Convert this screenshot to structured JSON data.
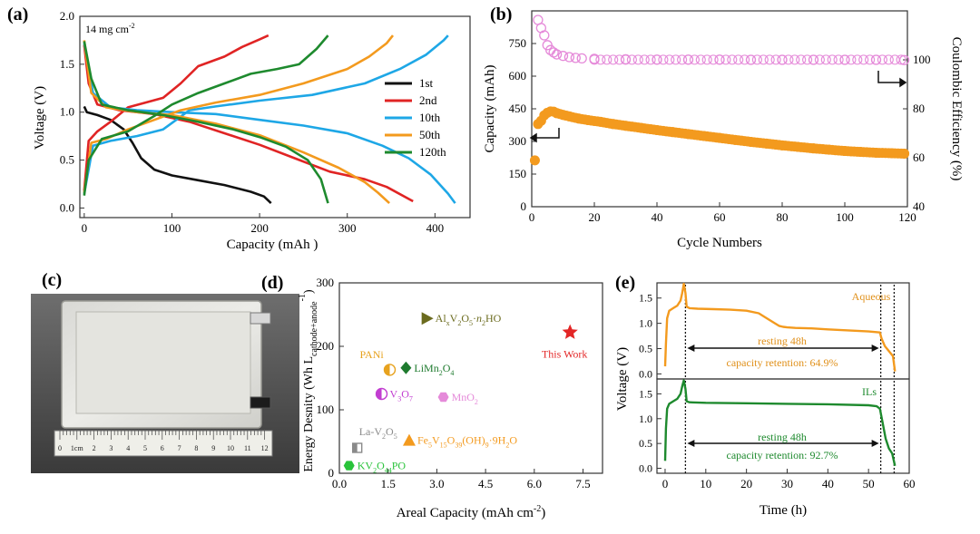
{
  "figure": {
    "panels": [
      "(a)",
      "(b)",
      "(c)",
      "(d)",
      "(e)"
    ]
  },
  "colors": {
    "black": "#111111",
    "red": "#e02424",
    "blue": "#1ea7e6",
    "orange": "#f39a1e",
    "green": "#1e8a2e",
    "pink": "#e58ad9",
    "olive": "#6b6b1e",
    "darkgreen": "#1e7a2e",
    "magenta": "#c23ed1",
    "star": "#e32626",
    "bright_green": "#29c33a",
    "gray": "#8a8a8a",
    "gold": "#e7a21e"
  },
  "chart_data": [
    {
      "id": "a",
      "type": "line",
      "panel_label": "(a)",
      "xlabel": "Capacity (mAh )",
      "ylabel": "Voltage (V)",
      "annotation": "14 mg cm",
      "annotation_sup": "-2",
      "xlim": [
        -5,
        440
      ],
      "ylim": [
        -0.1,
        2.0
      ],
      "xticks": [
        0,
        100,
        200,
        300,
        400
      ],
      "yticks": [
        0.0,
        0.5,
        1.0,
        1.5,
        2.0
      ],
      "ytick_labels": [
        "0.0",
        "0.5",
        "1.0",
        "1.5",
        "2.0"
      ],
      "legend": [
        "1st",
        "2nd",
        "10th",
        "50th",
        "120th"
      ],
      "series": [
        {
          "name": "1st",
          "color": "#111111",
          "discharge": [
            [
              0,
              1.06
            ],
            [
              3,
              1.0
            ],
            [
              15,
              0.97
            ],
            [
              30,
              0.92
            ],
            [
              45,
              0.82
            ],
            [
              55,
              0.68
            ],
            [
              65,
              0.52
            ],
            [
              80,
              0.4
            ],
            [
              100,
              0.34
            ],
            [
              130,
              0.29
            ],
            [
              160,
              0.24
            ],
            [
              190,
              0.17
            ],
            [
              205,
              0.12
            ],
            [
              213,
              0.05
            ]
          ],
          "charge": []
        },
        {
          "name": "2nd",
          "color": "#e02424",
          "discharge": [
            [
              0,
              1.7
            ],
            [
              5,
              1.3
            ],
            [
              15,
              1.08
            ],
            [
              40,
              1.02
            ],
            [
              80,
              0.98
            ],
            [
              120,
              0.9
            ],
            [
              160,
              0.78
            ],
            [
              200,
              0.66
            ],
            [
              240,
              0.52
            ],
            [
              280,
              0.38
            ],
            [
              320,
              0.3
            ],
            [
              345,
              0.22
            ],
            [
              375,
              0.07
            ]
          ],
          "charge": [
            [
              0,
              0.18
            ],
            [
              5,
              0.7
            ],
            [
              15,
              0.8
            ],
            [
              30,
              0.9
            ],
            [
              50,
              1.05
            ],
            [
              70,
              1.1
            ],
            [
              90,
              1.15
            ],
            [
              110,
              1.3
            ],
            [
              130,
              1.48
            ],
            [
              160,
              1.58
            ],
            [
              180,
              1.68
            ],
            [
              200,
              1.76
            ],
            [
              210,
              1.8
            ]
          ]
        },
        {
          "name": "10th",
          "color": "#1ea7e6",
          "discharge": [
            [
              0,
              1.72
            ],
            [
              10,
              1.2
            ],
            [
              30,
              1.05
            ],
            [
              60,
              1.02
            ],
            [
              100,
              1.0
            ],
            [
              150,
              0.98
            ],
            [
              200,
              0.92
            ],
            [
              250,
              0.86
            ],
            [
              300,
              0.78
            ],
            [
              340,
              0.65
            ],
            [
              370,
              0.52
            ],
            [
              395,
              0.35
            ],
            [
              415,
              0.15
            ],
            [
              423,
              0.05
            ]
          ],
          "charge": [
            [
              0,
              0.15
            ],
            [
              10,
              0.65
            ],
            [
              30,
              0.7
            ],
            [
              60,
              0.75
            ],
            [
              90,
              0.82
            ],
            [
              120,
              1.02
            ],
            [
              150,
              1.06
            ],
            [
              200,
              1.12
            ],
            [
              260,
              1.18
            ],
            [
              320,
              1.3
            ],
            [
              360,
              1.45
            ],
            [
              390,
              1.6
            ],
            [
              410,
              1.75
            ],
            [
              415,
              1.8
            ]
          ]
        },
        {
          "name": "50th",
          "color": "#f39a1e",
          "discharge": [
            [
              0,
              1.75
            ],
            [
              8,
              1.2
            ],
            [
              25,
              1.05
            ],
            [
              60,
              1.0
            ],
            [
              100,
              0.97
            ],
            [
              150,
              0.88
            ],
            [
              200,
              0.76
            ],
            [
              250,
              0.58
            ],
            [
              290,
              0.42
            ],
            [
              320,
              0.27
            ],
            [
              335,
              0.16
            ],
            [
              348,
              0.05
            ]
          ],
          "charge": [
            [
              0,
              0.16
            ],
            [
              8,
              0.68
            ],
            [
              25,
              0.72
            ],
            [
              50,
              0.82
            ],
            [
              80,
              0.92
            ],
            [
              110,
              1.02
            ],
            [
              150,
              1.1
            ],
            [
              200,
              1.18
            ],
            [
              250,
              1.3
            ],
            [
              300,
              1.45
            ],
            [
              325,
              1.58
            ],
            [
              345,
              1.72
            ],
            [
              352,
              1.8
            ]
          ]
        },
        {
          "name": "120th",
          "color": "#1e8a2e",
          "discharge": [
            [
              0,
              1.74
            ],
            [
              8,
              1.35
            ],
            [
              20,
              1.08
            ],
            [
              50,
              1.02
            ],
            [
              90,
              0.97
            ],
            [
              130,
              0.9
            ],
            [
              170,
              0.82
            ],
            [
              200,
              0.74
            ],
            [
              230,
              0.64
            ],
            [
              255,
              0.5
            ],
            [
              270,
              0.3
            ],
            [
              278,
              0.05
            ]
          ],
          "charge": [
            [
              0,
              0.13
            ],
            [
              5,
              0.5
            ],
            [
              20,
              0.72
            ],
            [
              50,
              0.8
            ],
            [
              80,
              0.96
            ],
            [
              100,
              1.08
            ],
            [
              130,
              1.2
            ],
            [
              160,
              1.3
            ],
            [
              190,
              1.4
            ],
            [
              220,
              1.45
            ],
            [
              245,
              1.5
            ],
            [
              265,
              1.66
            ],
            [
              278,
              1.8
            ]
          ]
        }
      ]
    },
    {
      "id": "b",
      "type": "scatter",
      "panel_label": "(b)",
      "xlabel": "Cycle Numbers",
      "ylabel": "Capacity (mAh)",
      "ylabel_right": "Coulombic Efficiency (%)",
      "xlim": [
        0,
        120
      ],
      "ylim": [
        0,
        900
      ],
      "ylim_right": [
        40,
        120
      ],
      "xticks": [
        0,
        20,
        40,
        60,
        80,
        100,
        120
      ],
      "yticks": [
        0,
        150,
        300,
        450,
        600,
        750
      ],
      "yticks_right": [
        40,
        60,
        80,
        100
      ],
      "series": [
        {
          "name": "Capacity",
          "color": "#f39a1e",
          "axis": "left",
          "x": [
            1,
            2,
            3,
            4,
            5,
            6,
            7,
            8,
            10,
            12,
            15,
            18,
            22,
            26,
            30,
            35,
            40,
            45,
            50,
            55,
            60,
            65,
            70,
            75,
            80,
            85,
            90,
            95,
            100,
            105,
            110,
            115,
            119
          ],
          "y": [
            213,
            380,
            395,
            420,
            432,
            438,
            437,
            430,
            422,
            415,
            405,
            398,
            390,
            380,
            372,
            362,
            352,
            343,
            334,
            325,
            316,
            307,
            298,
            290,
            282,
            275,
            268,
            262,
            256,
            252,
            248,
            246,
            244
          ]
        },
        {
          "name": "Coulombic Efficiency",
          "color": "#e58ad9",
          "axis": "right",
          "hollow": true,
          "x": [
            2,
            3,
            4,
            5,
            6,
            7,
            8,
            10,
            12,
            14,
            16,
            20,
            30,
            40,
            50,
            60,
            70,
            80,
            90,
            100,
            110,
            119
          ],
          "y": [
            120,
            113,
            110,
            106,
            104,
            103,
            102.2,
            101.6,
            101.1,
            100.8,
            100.6,
            100.4,
            100.2,
            100.1,
            100.1,
            100.1,
            100.0,
            100.0,
            100.0,
            100.0,
            100.0,
            99.9
          ]
        }
      ]
    },
    {
      "id": "d",
      "type": "scatter",
      "panel_label": "(d)",
      "xlabel": "Areal Capacity (mAh cm",
      "xlabel_sup": "-2",
      "ylabel": "Energy Desnity (Wh L",
      "ylabel_sub": "cathode+anode",
      "ylabel_sup": "-1",
      "xlim": [
        0,
        8.1
      ],
      "ylim": [
        0,
        300
      ],
      "xticks": [
        0.0,
        1.5,
        3.0,
        4.5,
        6.0,
        7.5
      ],
      "xtick_labels": [
        "0.0",
        "1.5",
        "3.0",
        "4.5",
        "6.0",
        "7.5"
      ],
      "yticks": [
        0,
        100,
        200,
        300
      ],
      "points": [
        {
          "label": "Al",
          "sub1": "x",
          "mid": "V",
          "sub2": "2",
          "mid2": "O",
          "sub3": "5",
          "tail": "·",
          "tail_it": "n",
          "tail2": "H",
          "sub4": "2",
          "tail3": "O",
          "x": 2.7,
          "y": 244,
          "marker": "triangle-right",
          "color": "#6b6b1e"
        },
        {
          "label": "PANi",
          "x": 1.55,
          "y": 163,
          "marker": "half-circle",
          "color": "#e7a21e"
        },
        {
          "label": "LiMn",
          "sub1": "2",
          "mid": "O",
          "sub2": "4",
          "x": 2.05,
          "y": 166,
          "marker": "diamond",
          "color": "#1e7a2e"
        },
        {
          "label": "V",
          "sub1": "3",
          "mid": "O",
          "sub2": "7",
          "x": 1.3,
          "y": 125,
          "marker": "half-circle",
          "color": "#c23ed1"
        },
        {
          "label": "MnO",
          "sub1": "2",
          "x": 3.2,
          "y": 120,
          "marker": "hexagon",
          "color": "#e58ad9"
        },
        {
          "label": "This Work",
          "x": 7.1,
          "y": 222,
          "marker": "star",
          "color": "#e32626"
        },
        {
          "label": "La-V",
          "sub1": "2",
          "mid": "O",
          "sub2": "5",
          "x": 0.55,
          "y": 40,
          "marker": "half-square",
          "color": "#8a8a8a"
        },
        {
          "label": "Fe",
          "sub1": "5",
          "mid": "V",
          "sub2": "15",
          "mid2": "O",
          "sub3": "39",
          "tail": "(OH)",
          "sub4": "9",
          "tail2": "·9H",
          "sub5": "2",
          "tail3": "O",
          "x": 2.15,
          "y": 52,
          "marker": "triangle-up",
          "color": "#f39a1e"
        },
        {
          "label": "KV",
          "sub1": "2",
          "mid": "O",
          "sub2": "4",
          "tail": "PO",
          "sub3": "4",
          "x": 0.3,
          "y": 12,
          "marker": "hexagon",
          "color": "#29c33a"
        }
      ]
    },
    {
      "id": "e",
      "type": "line",
      "panel_label": "(e)",
      "xlabel": "Time (h)",
      "ylabel": "Voltage (V)",
      "xlim": [
        -2,
        60
      ],
      "xticks": [
        0,
        10,
        20,
        30,
        40,
        50,
        60
      ],
      "subplots": [
        {
          "name": "Aqueous",
          "color": "#f39a1e",
          "ylim": [
            -0.1,
            1.8
          ],
          "yticks": [
            0.0,
            0.5,
            1.0,
            1.5
          ],
          "ytick_labels": [
            "0.0",
            "0.5",
            "1.0",
            "1.5"
          ],
          "x": [
            0,
            0.2,
            0.5,
            1,
            2,
            3,
            3.8,
            4.2,
            4.6,
            5,
            5.3,
            6,
            8,
            12,
            16,
            20,
            23,
            25,
            27,
            28,
            29,
            30,
            32,
            36,
            40,
            45,
            50,
            52.8,
            53.2,
            54,
            55,
            56,
            56.5
          ],
          "y": [
            0.15,
            0.6,
            1.1,
            1.25,
            1.3,
            1.35,
            1.45,
            1.6,
            1.78,
            1.6,
            1.33,
            1.3,
            1.29,
            1.28,
            1.27,
            1.25,
            1.2,
            1.1,
            1.0,
            0.95,
            0.93,
            0.92,
            0.91,
            0.9,
            0.88,
            0.86,
            0.84,
            0.82,
            0.7,
            0.55,
            0.45,
            0.35,
            0.05
          ],
          "annotation1": "resting 48h",
          "annotation2": "capacity retention: 64.9%"
        },
        {
          "name": "ILs",
          "color": "#1e8a2e",
          "ylim": [
            -0.1,
            1.8
          ],
          "yticks": [
            0.0,
            0.5,
            1.0,
            1.5
          ],
          "ytick_labels": [
            "0.0",
            "0.5",
            "1.0",
            "1.5"
          ],
          "x": [
            0,
            0.2,
            0.5,
            1,
            2,
            3,
            3.8,
            4.2,
            4.6,
            5,
            5.3,
            6,
            10,
            20,
            30,
            40,
            50,
            52,
            52.8,
            53.5,
            54.2,
            55,
            55.8,
            56.5
          ],
          "y": [
            0.15,
            0.8,
            1.2,
            1.3,
            1.35,
            1.4,
            1.5,
            1.65,
            1.77,
            1.6,
            1.35,
            1.33,
            1.32,
            1.31,
            1.3,
            1.29,
            1.27,
            1.25,
            1.2,
            0.9,
            0.6,
            0.4,
            0.3,
            0.05
          ],
          "annotation1": "resting 48h",
          "annotation2": "capacity retention: 92.7%"
        }
      ]
    }
  ],
  "photo": {
    "panel_label": "(c)",
    "ruler_labels": [
      "0",
      "1cm",
      "2",
      "3",
      "4",
      "5",
      "6",
      "7",
      "8",
      "9",
      "10",
      "11",
      "12"
    ]
  }
}
